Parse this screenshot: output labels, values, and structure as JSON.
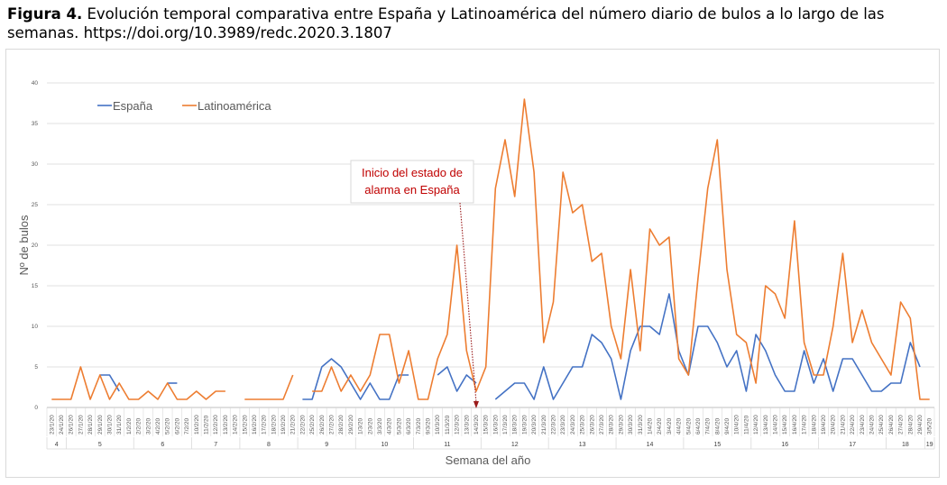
{
  "caption": {
    "label": "Figura 4.",
    "text": " Evolución temporal comparativa entre España y Latinoamérica del número diario de bulos a lo largo de las semanas. https://doi.org/10.3989/redc.2020.3.1807"
  },
  "chart_data": {
    "type": "line",
    "xlabel": "Semana del año",
    "ylabel": "Nº de bulos",
    "ylim": [
      0,
      40
    ],
    "yticks": [
      0,
      5,
      10,
      15,
      20,
      25,
      30,
      35,
      40
    ],
    "grid": true,
    "legend_position": "top-left",
    "dates": [
      "23/1/20",
      "24/1/20",
      "26/1/20",
      "27/1/20",
      "28/1/20",
      "29/1/20",
      "30/1/20",
      "31/1/20",
      "1/2/20",
      "2/2/20",
      "3/2/20",
      "4/2/20",
      "5/2/20",
      "6/2/20",
      "7/2/20",
      "10/2/20",
      "11/2/20",
      "12/2/20",
      "13/2/20",
      "14/2/20",
      "15/2/20",
      "16/2/20",
      "17/2/20",
      "18/2/20",
      "19/2/20",
      "21/2/20",
      "22/2/20",
      "25/2/20",
      "26/2/20",
      "27/2/20",
      "28/2/20",
      "29/2/20",
      "1/3/20",
      "2/3/20",
      "3/3/20",
      "4/3/20",
      "5/3/20",
      "6/3/20",
      "7/3/20",
      "9/3/20",
      "10/3/20",
      "11/3/20",
      "12/3/20",
      "13/3/20",
      "14/3/20",
      "15/3/20",
      "16/3/20",
      "17/3/20",
      "18/3/20",
      "19/3/20",
      "20/3/20",
      "21/3/20",
      "22/3/20",
      "23/3/20",
      "24/3/20",
      "25/3/20",
      "26/3/20",
      "27/3/20",
      "28/3/20",
      "29/3/20",
      "30/3/20",
      "31/3/20",
      "1/4/20",
      "2/4/20",
      "3/4/20",
      "4/4/20",
      "5/4/20",
      "6/4/20",
      "7/4/20",
      "8/4/20",
      "9/4/20",
      "10/4/20",
      "11/4/20",
      "12/4/20",
      "13/4/20",
      "14/4/20",
      "15/4/20",
      "16/4/20",
      "17/4/20",
      "18/4/20",
      "19/4/20",
      "20/4/20",
      "21/4/20",
      "22/4/20",
      "23/4/20",
      "24/4/20",
      "25/4/20",
      "26/4/20",
      "27/4/20",
      "28/4/20",
      "29/4/20",
      "3/5/20"
    ],
    "weeks": [
      {
        "label": "4",
        "start": 0,
        "end": 1
      },
      {
        "label": "5",
        "start": 2,
        "end": 8
      },
      {
        "label": "6",
        "start": 9,
        "end": 14
      },
      {
        "label": "7",
        "start": 15,
        "end": 19
      },
      {
        "label": "8",
        "start": 20,
        "end": 25
      },
      {
        "label": "9",
        "start": 26,
        "end": 31
      },
      {
        "label": "10",
        "start": 32,
        "end": 37
      },
      {
        "label": "11",
        "start": 38,
        "end": 44
      },
      {
        "label": "12",
        "start": 45,
        "end": 51
      },
      {
        "label": "13",
        "start": 52,
        "end": 58
      },
      {
        "label": "14",
        "start": 59,
        "end": 65
      },
      {
        "label": "15",
        "start": 66,
        "end": 72
      },
      {
        "label": "16",
        "start": 73,
        "end": 79
      },
      {
        "label": "17",
        "start": 80,
        "end": 86
      },
      {
        "label": "18",
        "start": 87,
        "end": 90
      },
      {
        "label": "19",
        "start": 91,
        "end": 91
      }
    ],
    "series": [
      {
        "name": "España",
        "color": "#4472c4",
        "values": [
          null,
          null,
          null,
          null,
          null,
          4,
          4,
          2,
          null,
          null,
          null,
          null,
          3,
          3,
          null,
          null,
          null,
          null,
          null,
          1,
          null,
          null,
          null,
          null,
          null,
          null,
          1,
          1,
          5,
          6,
          5,
          3,
          1,
          3,
          1,
          1,
          4,
          4,
          null,
          null,
          4,
          5,
          2,
          4,
          3,
          null,
          1,
          2,
          3,
          3,
          1,
          5,
          1,
          3,
          5,
          5,
          9,
          8,
          6,
          1,
          7,
          10,
          10,
          9,
          14,
          7,
          4,
          10,
          10,
          8,
          5,
          7,
          2,
          9,
          7,
          4,
          2,
          2,
          7,
          3,
          6,
          2,
          6,
          6,
          4,
          2,
          2,
          3,
          3,
          8,
          5,
          null
        ]
      },
      {
        "name": "Latinoamérica",
        "color": "#ed7d31",
        "values": [
          1,
          1,
          1,
          5,
          1,
          4,
          1,
          3,
          1,
          1,
          2,
          1,
          3,
          1,
          1,
          2,
          1,
          2,
          2,
          null,
          1,
          1,
          1,
          1,
          1,
          4,
          null,
          2,
          2,
          5,
          2,
          4,
          2,
          4,
          9,
          9,
          3,
          7,
          1,
          1,
          6,
          9,
          20,
          7,
          2,
          5,
          27,
          33,
          26,
          38,
          29,
          8,
          13,
          29,
          24,
          25,
          18,
          19,
          10,
          6,
          17,
          7,
          22,
          20,
          21,
          6,
          4,
          16,
          27,
          33,
          17,
          9,
          8,
          3,
          15,
          14,
          11,
          23,
          8,
          4,
          4,
          10,
          19,
          8,
          12,
          8,
          6,
          4,
          13,
          11,
          1,
          1
        ]
      }
    ],
    "annotation": {
      "lines": [
        "Inicio del estado de",
        "alarma en España"
      ],
      "target_index": 44
    }
  }
}
